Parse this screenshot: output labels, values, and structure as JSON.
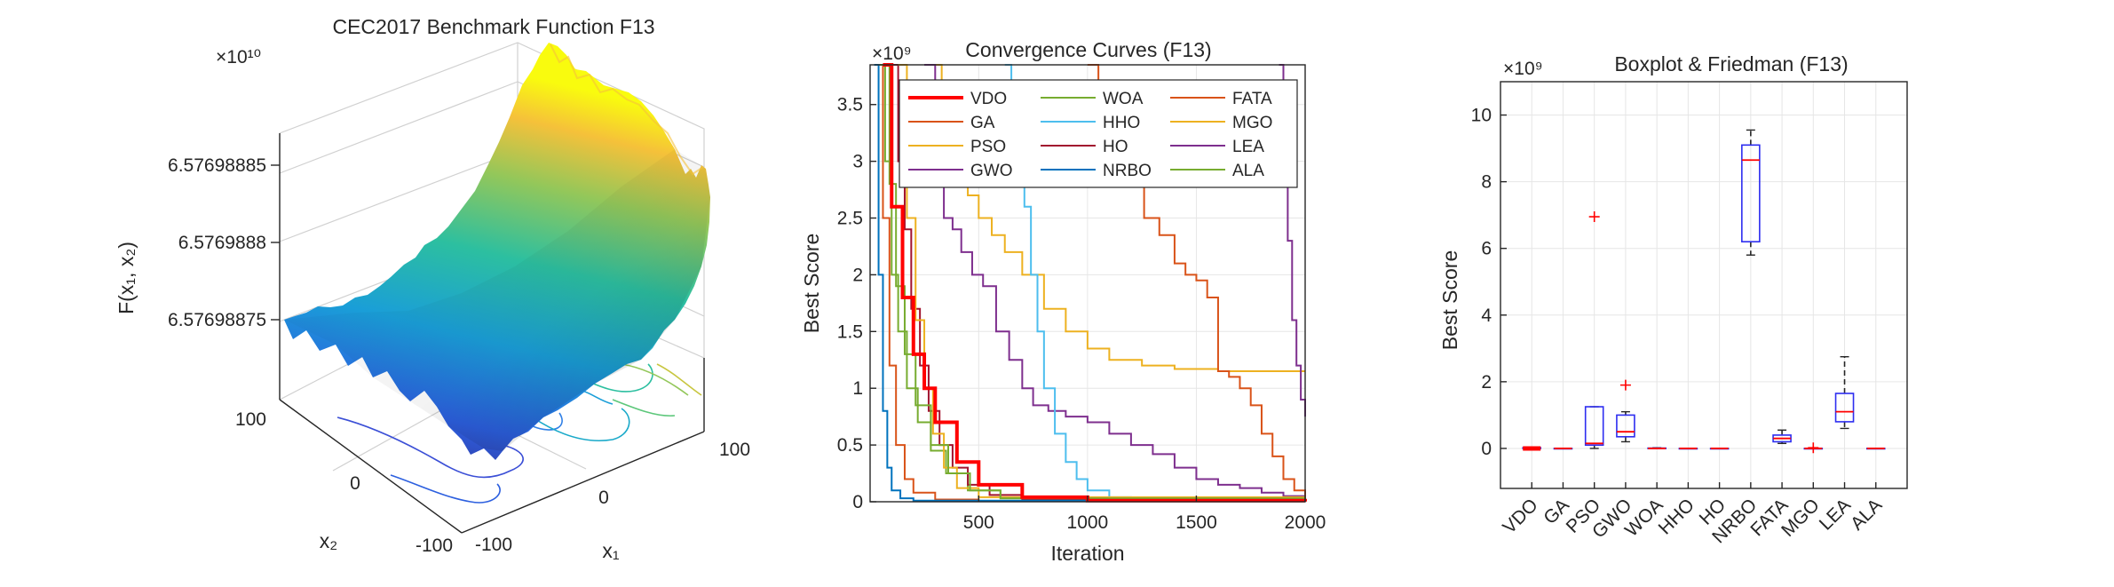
{
  "chart_data": [
    {
      "type": "surface3d",
      "title": "CEC2017 Benchmark Function F13",
      "zlabel": "F(x₁, x₂)",
      "xlabel": "x₁",
      "ylabel": "x₂",
      "exponent": "×10¹⁰",
      "ztick_labels": [
        "6.57698885",
        "6.5769888",
        "6.57698875"
      ],
      "xtick_labels": [
        "100",
        "0",
        "-100"
      ],
      "ytick_labels": [
        "100",
        "0",
        "-100"
      ],
      "colors": [
        "#352a87",
        "#2c5fdf",
        "#1a9ed8",
        "#2cbfa0",
        "#93c75a",
        "#f5c13a",
        "#f9fb0e"
      ]
    },
    {
      "type": "line",
      "title": "Convergence Curves (F13)",
      "xlabel": "Iteration",
      "ylabel": "Best Score",
      "exponent": "×10⁹",
      "xlim": [
        1,
        2000
      ],
      "ylim": [
        0,
        3.85
      ],
      "xticks": [
        500,
        1000,
        1500,
        2000
      ],
      "xtick_labels": [
        "500",
        "1000",
        "1500",
        "2000"
      ],
      "yticks": [
        0,
        0.5,
        1,
        1.5,
        2,
        2.5,
        3,
        3.5
      ],
      "ytick_labels": [
        "0",
        "0.5",
        "1",
        "1.5",
        "2",
        "2.5",
        "3",
        "3.5"
      ],
      "series": [
        {
          "name": "VDO",
          "color": "#ff0000",
          "width": 4,
          "x": [
            60,
            100,
            150,
            200,
            250,
            300,
            400,
            500,
            700,
            1000,
            2000
          ],
          "y": [
            3.85,
            2.6,
            1.8,
            1.3,
            1.0,
            0.7,
            0.35,
            0.15,
            0.04,
            0.01,
            0.002
          ]
        },
        {
          "name": "GA",
          "color": "#d95319",
          "width": 2,
          "x": [
            30,
            60,
            90,
            120,
            160,
            200,
            300,
            500,
            2000
          ],
          "y": [
            3.85,
            2.5,
            1.2,
            0.5,
            0.2,
            0.08,
            0.02,
            0.005,
            0.002
          ]
        },
        {
          "name": "PSO",
          "color": "#edb120",
          "width": 2,
          "x": [
            300,
            330,
            380,
            450,
            500,
            560,
            620,
            700,
            800,
            900,
            1000,
            1100,
            1250,
            1400,
            1600,
            2000
          ],
          "y": [
            3.85,
            3.2,
            2.9,
            2.7,
            2.5,
            2.35,
            2.2,
            2.0,
            1.7,
            1.5,
            1.35,
            1.25,
            1.2,
            1.17,
            1.15,
            1.15
          ]
        },
        {
          "name": "GWO",
          "color": "#7e2f8e",
          "width": 2,
          "x": [
            250,
            300,
            340,
            380,
            420,
            470,
            520,
            580,
            640,
            700,
            750,
            820,
            900,
            1000,
            1100,
            1200,
            1300,
            1400,
            1500,
            1600,
            1700,
            1800,
            1900,
            2000
          ],
          "y": [
            3.85,
            2.8,
            2.5,
            2.4,
            2.2,
            2.0,
            1.9,
            1.5,
            1.25,
            1.0,
            0.85,
            0.8,
            0.75,
            0.7,
            0.6,
            0.5,
            0.42,
            0.3,
            0.2,
            0.15,
            0.12,
            0.08,
            0.05,
            0.02
          ]
        },
        {
          "name": "WOA",
          "color": "#77ac30",
          "width": 2,
          "x": [
            40,
            70,
            100,
            130,
            170,
            220,
            280,
            350,
            450,
            600,
            800,
            2000
          ],
          "y": [
            3.85,
            3.0,
            2.0,
            1.5,
            1.0,
            0.7,
            0.45,
            0.25,
            0.1,
            0.03,
            0.01,
            0.003
          ]
        },
        {
          "name": "HHO",
          "color": "#4dbeee",
          "width": 2,
          "x": [
            620,
            650,
            680,
            710,
            740,
            770,
            800,
            850,
            900,
            950,
            1000,
            1100,
            1200,
            2000
          ],
          "y": [
            3.85,
            3.4,
            3.0,
            2.6,
            2.0,
            1.5,
            1.0,
            0.6,
            0.35,
            0.2,
            0.1,
            0.04,
            0.02,
            0.01
          ]
        },
        {
          "name": "HO",
          "color": "#a2142f",
          "width": 2,
          "x": [
            100,
            130,
            160,
            190,
            230,
            270,
            320,
            380,
            450,
            550,
            700,
            1000,
            2000
          ],
          "y": [
            3.85,
            3.0,
            2.4,
            1.7,
            1.2,
            0.8,
            0.5,
            0.3,
            0.15,
            0.06,
            0.02,
            0.008,
            0.004
          ]
        },
        {
          "name": "NRBO",
          "color": "#0072bd",
          "width": 2,
          "x": [
            20,
            40,
            60,
            80,
            100,
            140,
            200,
            2000
          ],
          "y": [
            3.85,
            2.0,
            0.8,
            0.3,
            0.1,
            0.03,
            0.01,
            0.005
          ]
        },
        {
          "name": "FATA",
          "color": "#d95319",
          "width": 2,
          "x": [
            1000,
            1050,
            1100,
            1150,
            1200,
            1260,
            1330,
            1400,
            1450,
            1500,
            1550,
            1600,
            1650,
            1700,
            1750,
            1800,
            1850,
            1900,
            1950,
            2000
          ],
          "y": [
            3.85,
            3.4,
            3.2,
            2.9,
            2.8,
            2.5,
            2.35,
            2.1,
            2.0,
            1.95,
            1.8,
            1.15,
            1.1,
            1.0,
            0.85,
            0.6,
            0.4,
            0.2,
            0.1,
            0.05
          ]
        },
        {
          "name": "MGO",
          "color": "#edb120",
          "width": 2,
          "x": [
            130,
            170,
            210,
            250,
            290,
            340,
            400,
            500,
            2000
          ],
          "y": [
            3.85,
            2.5,
            1.6,
            1.0,
            0.6,
            0.3,
            0.12,
            0.04,
            0.01
          ]
        },
        {
          "name": "LEA",
          "color": "#7e2f8e",
          "width": 2,
          "x": [
            1880,
            1900,
            1920,
            1940,
            1960,
            1980,
            2000
          ],
          "y": [
            3.85,
            3.0,
            2.3,
            1.6,
            1.2,
            0.9,
            0.75
          ]
        },
        {
          "name": "ALA",
          "color": "#77ac30",
          "width": 2,
          "x": [
            60,
            90,
            120,
            160,
            210,
            280,
            360,
            460,
            600,
            2000
          ],
          "y": [
            3.85,
            2.8,
            1.9,
            1.3,
            0.85,
            0.5,
            0.25,
            0.1,
            0.03,
            0.005
          ]
        }
      ]
    },
    {
      "type": "box",
      "title": "Boxplot & Friedman (F13)",
      "ylabel": "Best Score",
      "exponent": "×10⁹",
      "ylim": [
        -1.2,
        11
      ],
      "yticks": [
        0,
        2,
        4,
        6,
        8,
        10
      ],
      "ytick_labels": [
        "0",
        "2",
        "4",
        "6",
        "8",
        "10"
      ],
      "categories": [
        "VDO",
        "GA",
        "PSO",
        "GWO",
        "WOA",
        "HHO",
        "HO",
        "NRBO",
        "FATA",
        "MGO",
        "LEA",
        "ALA"
      ],
      "boxes": [
        {
          "min": 0,
          "q1": 0,
          "median": 0,
          "q3": 0.02,
          "max": 0.04,
          "outliers": []
        },
        {
          "min": 0,
          "q1": 0,
          "median": 0,
          "q3": 0,
          "max": 0,
          "outliers": []
        },
        {
          "min": 0,
          "q1": 0.1,
          "median": 0.15,
          "q3": 1.25,
          "max": 1.25,
          "outliers": [
            6.95
          ]
        },
        {
          "min": 0.2,
          "q1": 0.35,
          "median": 0.5,
          "q3": 1.0,
          "max": 1.1,
          "outliers": [
            1.9
          ]
        },
        {
          "min": 0,
          "q1": 0,
          "median": 0,
          "q3": 0.01,
          "max": 0.02,
          "outliers": []
        },
        {
          "min": 0,
          "q1": 0,
          "median": 0,
          "q3": 0,
          "max": 0,
          "outliers": []
        },
        {
          "min": 0,
          "q1": 0,
          "median": 0,
          "q3": 0,
          "max": 0,
          "outliers": []
        },
        {
          "min": 5.8,
          "q1": 6.2,
          "median": 8.65,
          "q3": 9.1,
          "max": 9.55,
          "outliers": []
        },
        {
          "min": 0.15,
          "q1": 0.2,
          "median": 0.3,
          "q3": 0.4,
          "max": 0.55,
          "outliers": []
        },
        {
          "min": 0,
          "q1": 0,
          "median": 0,
          "q3": 0,
          "max": 0,
          "outliers": [
            0.02
          ]
        },
        {
          "min": 0.6,
          "q1": 0.8,
          "median": 1.1,
          "q3": 1.65,
          "max": 2.75,
          "outliers": []
        },
        {
          "min": 0,
          "q1": 0,
          "median": 0,
          "q3": 0,
          "max": 0,
          "outliers": []
        }
      ]
    }
  ]
}
